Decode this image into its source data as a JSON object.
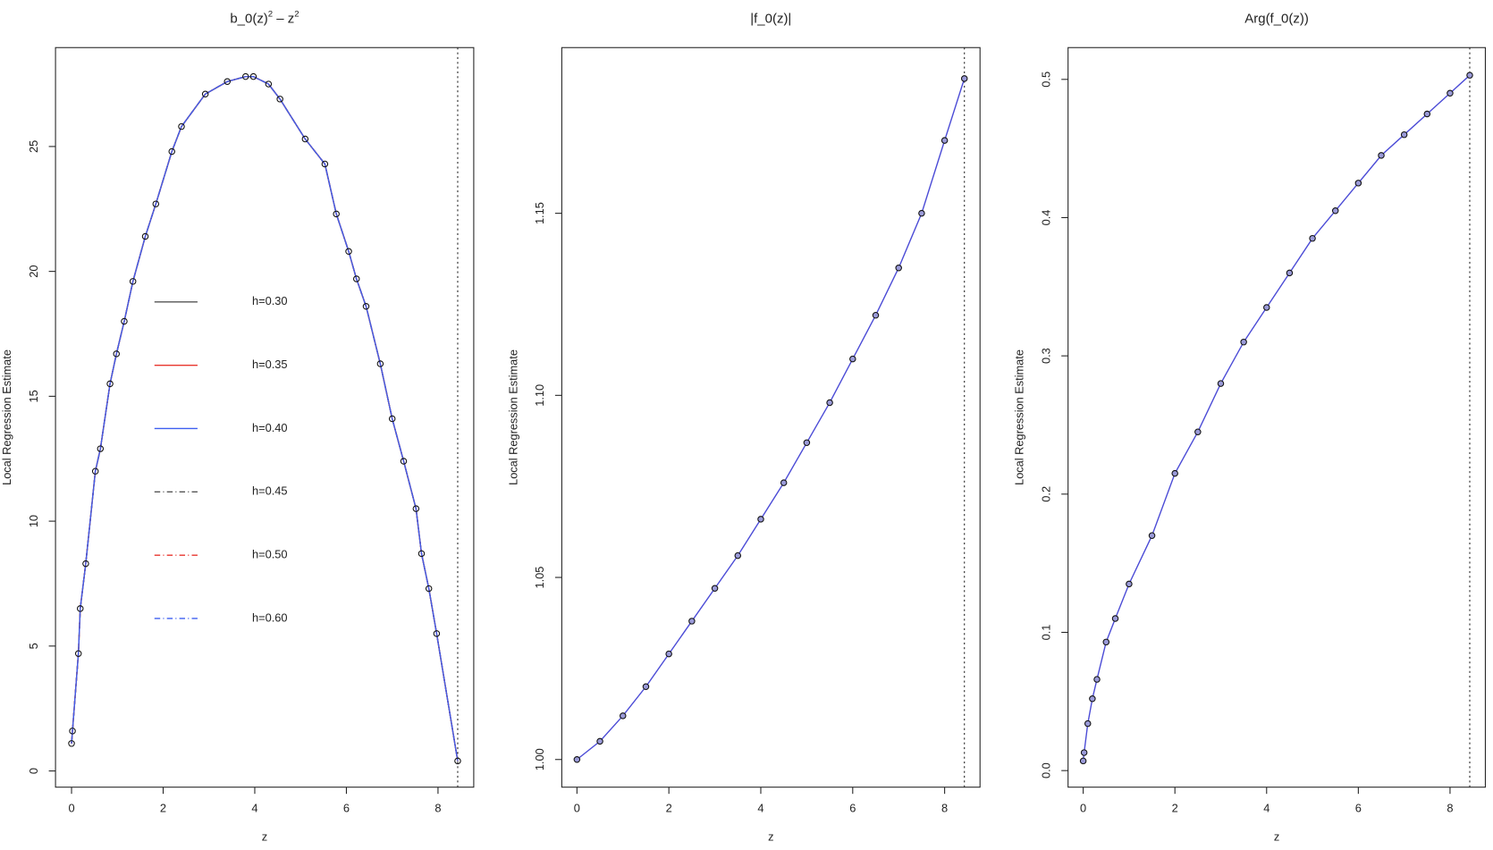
{
  "chart_data": [
    {
      "type": "line",
      "title": [
        "b_0(z)",
        "2",
        " – z",
        "2"
      ],
      "xlabel": "z",
      "ylabel": "Local Regression Estimate",
      "xlim": [
        -0.35,
        8.78
      ],
      "ylim": [
        -0.65,
        28.96
      ],
      "xticks": [
        0,
        2,
        4,
        6,
        8
      ],
      "yticks": [
        0,
        5,
        10,
        15,
        20,
        25
      ],
      "vline": 8.43,
      "legend": "center",
      "points": true,
      "x": [
        0,
        0.02,
        0.15,
        0.19,
        0.31,
        0.52,
        0.63,
        0.84,
        0.98,
        1.15,
        1.34,
        1.61,
        1.84,
        2.19,
        2.4,
        2.92,
        3.4,
        3.8,
        3.97,
        4.3,
        4.55,
        5.1,
        5.53,
        5.78,
        6.05,
        6.22,
        6.43,
        6.74,
        7.0,
        7.25,
        7.52,
        7.64,
        7.8,
        7.97,
        8.43
      ],
      "series": [
        {
          "name": "h=0.30",
          "color": "#555555",
          "linestyle": "solid",
          "values": [
            1.1,
            1.6,
            4.7,
            6.5,
            8.3,
            12.0,
            12.9,
            15.5,
            16.7,
            18.0,
            19.6,
            21.4,
            22.7,
            24.8,
            25.8,
            27.1,
            27.6,
            27.8,
            27.8,
            27.5,
            26.9,
            25.3,
            24.3,
            22.3,
            20.8,
            19.7,
            18.6,
            16.3,
            14.1,
            12.4,
            10.5,
            8.7,
            7.3,
            5.5,
            0.4
          ]
        },
        {
          "name": "h=0.35",
          "color": "#e8352e",
          "linestyle": "solid",
          "values": [
            1.1,
            1.6,
            4.7,
            6.5,
            8.3,
            12.0,
            12.9,
            15.5,
            16.7,
            18.0,
            19.6,
            21.4,
            22.7,
            24.8,
            25.8,
            27.1,
            27.6,
            27.8,
            27.8,
            27.5,
            26.9,
            25.3,
            24.3,
            22.3,
            20.8,
            19.7,
            18.6,
            16.3,
            14.1,
            12.4,
            10.5,
            8.7,
            7.3,
            5.5,
            0.4
          ]
        },
        {
          "name": "h=0.40",
          "color": "#3d5ff0",
          "linestyle": "solid",
          "values": [
            1.1,
            1.6,
            4.7,
            6.5,
            8.3,
            12.0,
            12.9,
            15.5,
            16.7,
            18.0,
            19.6,
            21.4,
            22.7,
            24.8,
            25.8,
            27.1,
            27.6,
            27.8,
            27.8,
            27.5,
            26.9,
            25.3,
            24.3,
            22.3,
            20.8,
            19.7,
            18.6,
            16.3,
            14.1,
            12.4,
            10.5,
            8.7,
            7.3,
            5.5,
            0.4
          ]
        },
        {
          "name": "h=0.45",
          "color": "#555555",
          "linestyle": "dashdot",
          "values": [
            1.1,
            1.6,
            4.7,
            6.5,
            8.3,
            12.0,
            12.9,
            15.5,
            16.7,
            18.0,
            19.6,
            21.4,
            22.7,
            24.8,
            25.8,
            27.1,
            27.6,
            27.8,
            27.8,
            27.5,
            26.9,
            25.3,
            24.3,
            22.3,
            20.8,
            19.7,
            18.6,
            16.3,
            14.1,
            12.4,
            10.5,
            8.7,
            7.3,
            5.5,
            0.4
          ]
        },
        {
          "name": "h=0.50",
          "color": "#e8352e",
          "linestyle": "dashdot",
          "values": [
            1.1,
            1.6,
            4.7,
            6.5,
            8.3,
            12.0,
            12.9,
            15.5,
            16.7,
            18.0,
            19.6,
            21.4,
            22.7,
            24.8,
            25.8,
            27.1,
            27.6,
            27.8,
            27.8,
            27.5,
            26.9,
            25.3,
            24.3,
            22.3,
            20.8,
            19.7,
            18.6,
            16.3,
            14.1,
            12.4,
            10.5,
            8.7,
            7.3,
            5.5,
            0.4
          ]
        },
        {
          "name": "h=0.60",
          "color": "#3d5ff0",
          "linestyle": "dashdot",
          "values": [
            1.1,
            1.6,
            4.7,
            6.5,
            8.3,
            12.0,
            12.9,
            15.5,
            16.7,
            18.0,
            19.6,
            21.4,
            22.7,
            24.8,
            25.8,
            27.1,
            27.6,
            27.8,
            27.8,
            27.5,
            26.9,
            25.3,
            24.3,
            22.3,
            20.8,
            19.7,
            18.6,
            16.3,
            14.1,
            12.4,
            10.5,
            8.7,
            7.3,
            5.5,
            0.4
          ]
        }
      ]
    },
    {
      "type": "line",
      "title": [
        "|f_0(z)|"
      ],
      "xlabel": "z",
      "ylabel": "Local Regression Estimate",
      "xlim": [
        -0.33,
        8.77
      ],
      "ylim": [
        0.9924,
        1.1955
      ],
      "xticks": [
        0,
        2,
        4,
        6,
        8
      ],
      "yticks": [
        {
          "value": 1,
          "label": "1.00"
        },
        1.05,
        {
          "value": 1.1,
          "label": "1.10"
        },
        1.15
      ],
      "vline": 8.43,
      "points": true,
      "color": "#4b4bd6",
      "x": [
        0,
        0.5,
        1,
        1.5,
        2,
        2.5,
        3,
        3.5,
        4,
        4.5,
        5,
        5.5,
        6,
        6.5,
        7,
        7.5,
        8,
        8.43
      ],
      "values": [
        1.0,
        1.005,
        1.012,
        1.02,
        1.029,
        1.038,
        1.047,
        1.056,
        1.066,
        1.076,
        1.087,
        1.098,
        1.11,
        1.122,
        1.135,
        1.15,
        1.17,
        1.187
      ]
    },
    {
      "type": "line",
      "title": [
        "Arg(f_0(z))"
      ],
      "xlabel": "z",
      "ylabel": "Local Regression Estimate",
      "xlim": [
        -0.33,
        8.77
      ],
      "ylim": [
        -0.012,
        0.523
      ],
      "xticks": [
        0,
        2,
        4,
        6,
        8
      ],
      "yticks": [
        {
          "value": 0,
          "label": "0.0"
        },
        0.1,
        0.2,
        0.3,
        0.4,
        0.5
      ],
      "vline": 8.43,
      "points": true,
      "color": "#4b4bd6",
      "x": [
        0,
        0.02,
        0.1,
        0.2,
        0.3,
        0.5,
        0.7,
        1,
        1.5,
        2,
        2.5,
        3,
        3.5,
        4,
        4.5,
        5,
        5.5,
        6,
        6.5,
        7,
        7.5,
        8,
        8.43
      ],
      "values": [
        0.007,
        0.013,
        0.034,
        0.052,
        0.066,
        0.093,
        0.11,
        0.135,
        0.17,
        0.215,
        0.245,
        0.28,
        0.31,
        0.335,
        0.36,
        0.385,
        0.405,
        0.425,
        0.445,
        0.46,
        0.475,
        0.49,
        0.503
      ]
    }
  ]
}
